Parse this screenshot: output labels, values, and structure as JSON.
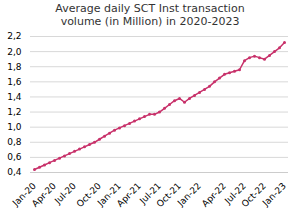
{
  "chart_data": {
    "type": "line",
    "title": "Average daily SCT Inst transaction\nvolume (in Million) in 2020-2023",
    "categories": [
      "Jan-20",
      null,
      null,
      null,
      "Apr-20",
      null,
      null,
      null,
      "Jul-20",
      null,
      null,
      null,
      null,
      "Oct-20",
      null,
      null,
      null,
      "Jan-21",
      null,
      null,
      null,
      "Apr-21",
      null,
      null,
      null,
      "Jul-21",
      null,
      null,
      null,
      "Oct-21",
      null,
      null,
      null,
      "Jan-22",
      null,
      null,
      null,
      null,
      "Apr-22",
      null,
      null,
      null,
      "Jul-22",
      null,
      null,
      null,
      "Oct-22",
      null,
      null,
      null,
      "Jan-23"
    ],
    "values": [
      0.44,
      0.47,
      0.5,
      0.53,
      0.56,
      0.59,
      0.62,
      0.65,
      0.68,
      0.71,
      0.74,
      0.77,
      0.8,
      0.84,
      0.88,
      0.92,
      0.96,
      0.99,
      1.02,
      1.05,
      1.08,
      1.11,
      1.14,
      1.17,
      1.17,
      1.2,
      1.25,
      1.3,
      1.35,
      1.38,
      1.33,
      1.38,
      1.42,
      1.46,
      1.5,
      1.54,
      1.6,
      1.65,
      1.7,
      1.72,
      1.74,
      1.76,
      1.88,
      1.92,
      1.94,
      1.92,
      1.9,
      1.95,
      2.0,
      2.05,
      2.12
    ],
    "color": "#c8316a",
    "marker": "circle",
    "ylim": [
      0.4,
      2.2
    ],
    "yticks": [
      {
        "value": 0.4,
        "label": "0,4"
      },
      {
        "value": 0.6,
        "label": "0,6"
      },
      {
        "value": 0.8,
        "label": "0,8"
      },
      {
        "value": 1.0,
        "label": "1,0"
      },
      {
        "value": 1.2,
        "label": "1,2"
      },
      {
        "value": 1.4,
        "label": "1,4"
      },
      {
        "value": 1.6,
        "label": "1,6"
      },
      {
        "value": 1.8,
        "label": "1,8"
      },
      {
        "value": 2.0,
        "label": "2,0"
      },
      {
        "value": 2.2,
        "label": "2,2"
      }
    ],
    "grid": true
  }
}
